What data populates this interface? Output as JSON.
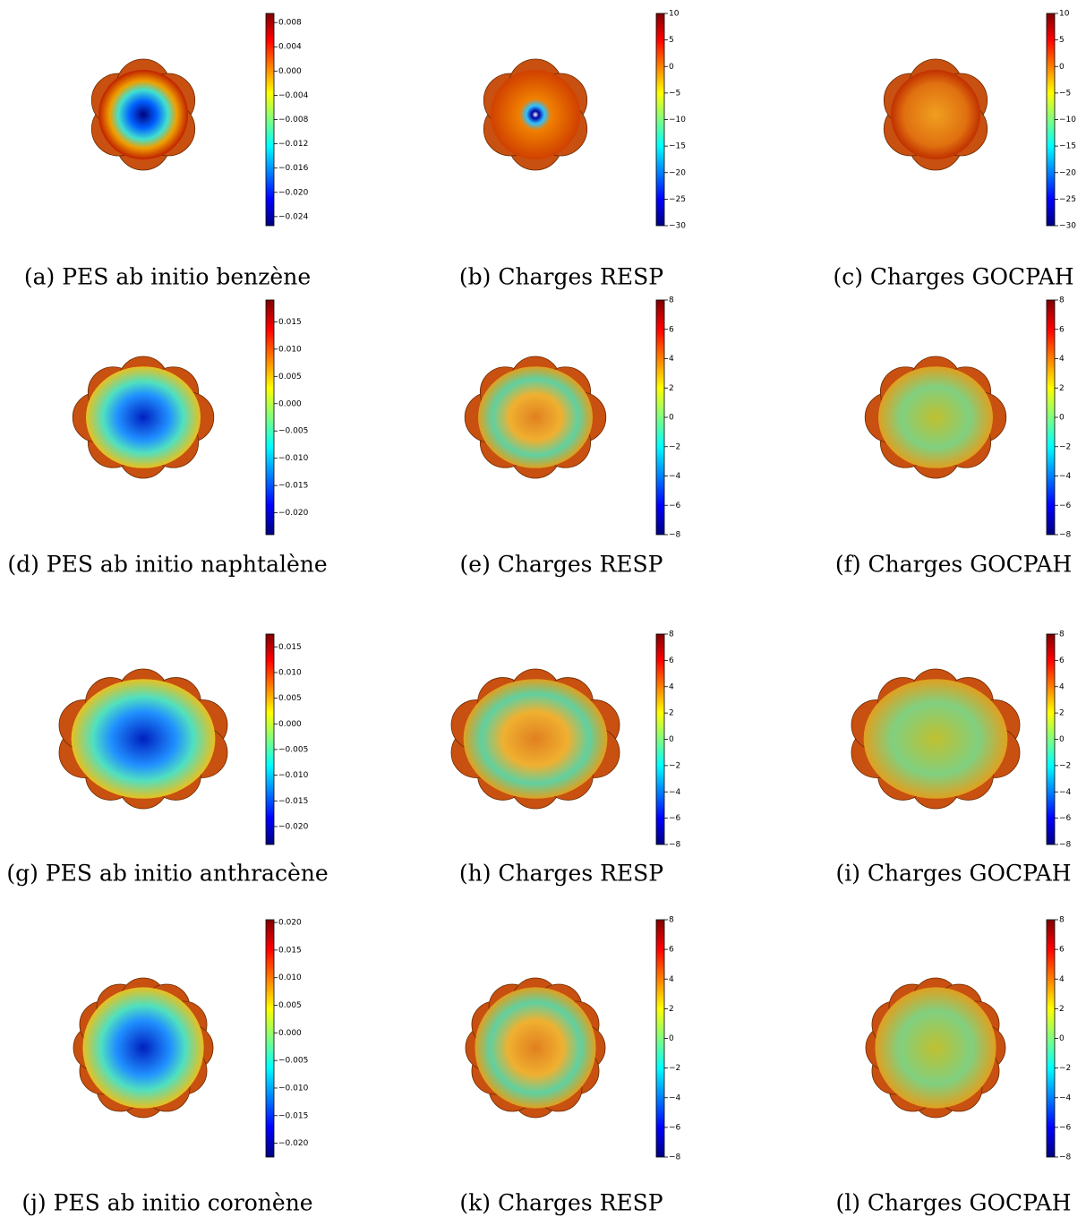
{
  "panels": [
    {
      "caption": "(a) PES ab initio benzène",
      "colorbar": {
        "lim": [
          -0.0255,
          0.0095
        ],
        "ticks": [
          0.008,
          0.004,
          {
            "value": 0,
            "label": "0.000"
          },
          {
            "value": -0.004,
            "label": "−0.004"
          },
          {
            "value": -0.008,
            "label": "−0.008"
          },
          {
            "value": -0.012,
            "label": "−0.012"
          },
          {
            "value": -0.016,
            "label": "−0.016"
          },
          {
            "value": -0.02,
            "label": "−0.020"
          },
          {
            "value": -0.024,
            "label": "−0.024"
          }
        ]
      }
    },
    {
      "caption": "(b) Charges RESP",
      "colorbar": {
        "lim": [
          -30,
          10
        ],
        "ticks": [
          10,
          5,
          0,
          {
            "value": -5,
            "label": "−5"
          },
          {
            "value": -10,
            "label": "−10"
          },
          {
            "value": -15,
            "label": "−15"
          },
          {
            "value": -20,
            "label": "−20"
          },
          {
            "value": -25,
            "label": "−25"
          },
          {
            "value": -30,
            "label": "−30"
          }
        ]
      }
    },
    {
      "caption": "(c) Charges GOCPAH",
      "colorbar": {
        "lim": [
          -30,
          10
        ],
        "ticks": [
          10,
          5,
          0,
          {
            "value": -5,
            "label": "−5"
          },
          {
            "value": -10,
            "label": "−10"
          },
          {
            "value": -15,
            "label": "−15"
          },
          {
            "value": -20,
            "label": "−20"
          },
          {
            "value": -25,
            "label": "−25"
          },
          {
            "value": -30,
            "label": "−30"
          }
        ]
      }
    },
    {
      "caption": "(d) PES ab initio naphtalène",
      "colorbar": {
        "lim": [
          -0.024,
          0.019
        ],
        "ticks": [
          0.015,
          {
            "value": 0.01,
            "label": "0.010"
          },
          0.005,
          {
            "value": 0,
            "label": "0.000"
          },
          {
            "value": -0.005,
            "label": "−0.005"
          },
          {
            "value": -0.01,
            "label": "−0.010"
          },
          {
            "value": -0.015,
            "label": "−0.015"
          },
          {
            "value": -0.02,
            "label": "−0.020"
          }
        ]
      }
    },
    {
      "caption": "(e) Charges RESP",
      "colorbar": {
        "lim": [
          -8,
          8
        ],
        "ticks": [
          8,
          6,
          4,
          2,
          0,
          {
            "value": -2,
            "label": "−2"
          },
          {
            "value": -4,
            "label": "−4"
          },
          {
            "value": -6,
            "label": "−6"
          },
          {
            "value": -8,
            "label": "−8"
          }
        ]
      }
    },
    {
      "caption": "(f) Charges GOCPAH",
      "colorbar": {
        "lim": [
          -8,
          8
        ],
        "ticks": [
          8,
          6,
          4,
          2,
          0,
          {
            "value": -2,
            "label": "−2"
          },
          {
            "value": -4,
            "label": "−4"
          },
          {
            "value": -6,
            "label": "−6"
          },
          {
            "value": -8,
            "label": "−8"
          }
        ]
      }
    },
    {
      "caption": "(g) PES ab initio anthracène",
      "colorbar": {
        "lim": [
          -0.0235,
          0.0175
        ],
        "ticks": [
          0.015,
          {
            "value": 0.01,
            "label": "0.010"
          },
          0.005,
          {
            "value": 0,
            "label": "0.000"
          },
          {
            "value": -0.005,
            "label": "−0.005"
          },
          {
            "value": -0.01,
            "label": "−0.010"
          },
          {
            "value": -0.015,
            "label": "−0.015"
          },
          {
            "value": -0.02,
            "label": "−0.020"
          }
        ]
      }
    },
    {
      "caption": "(h) Charges RESP",
      "colorbar": {
        "lim": [
          -8,
          8
        ],
        "ticks": [
          8,
          6,
          4,
          2,
          0,
          {
            "value": -2,
            "label": "−2"
          },
          {
            "value": -4,
            "label": "−4"
          },
          {
            "value": -6,
            "label": "−6"
          },
          {
            "value": -8,
            "label": "−8"
          }
        ]
      }
    },
    {
      "caption": "(i) Charges GOCPAH",
      "colorbar": {
        "lim": [
          -8,
          8
        ],
        "ticks": [
          8,
          6,
          4,
          2,
          0,
          {
            "value": -2,
            "label": "−2"
          },
          {
            "value": -4,
            "label": "−4"
          },
          {
            "value": -6,
            "label": "−6"
          },
          {
            "value": -8,
            "label": "−8"
          }
        ]
      }
    },
    {
      "caption": "(j) PES ab initio coronène",
      "colorbar": {
        "lim": [
          -0.0225,
          0.0205
        ],
        "ticks": [
          {
            "value": 0.02,
            "label": "0.020"
          },
          0.015,
          {
            "value": 0.01,
            "label": "0.010"
          },
          0.005,
          {
            "value": 0,
            "label": "0.000"
          },
          {
            "value": -0.005,
            "label": "−0.005"
          },
          {
            "value": -0.01,
            "label": "−0.010"
          },
          {
            "value": -0.015,
            "label": "−0.015"
          },
          {
            "value": -0.02,
            "label": "−0.020"
          }
        ]
      }
    },
    {
      "caption": "(k) Charges RESP",
      "colorbar": {
        "lim": [
          -8,
          8
        ],
        "ticks": [
          8,
          6,
          4,
          2,
          0,
          {
            "value": -2,
            "label": "−2"
          },
          {
            "value": -4,
            "label": "−4"
          },
          {
            "value": -6,
            "label": "−6"
          },
          {
            "value": -8,
            "label": "−8"
          }
        ]
      }
    },
    {
      "caption": "(l) Charges GOCPAH",
      "colorbar": {
        "lim": [
          -8,
          8
        ],
        "ticks": [
          8,
          6,
          4,
          2,
          0,
          {
            "value": -2,
            "label": "−2"
          },
          {
            "value": -4,
            "label": "−4"
          },
          {
            "value": -6,
            "label": "−6"
          },
          {
            "value": -8,
            "label": "−8"
          }
        ]
      }
    }
  ]
}
